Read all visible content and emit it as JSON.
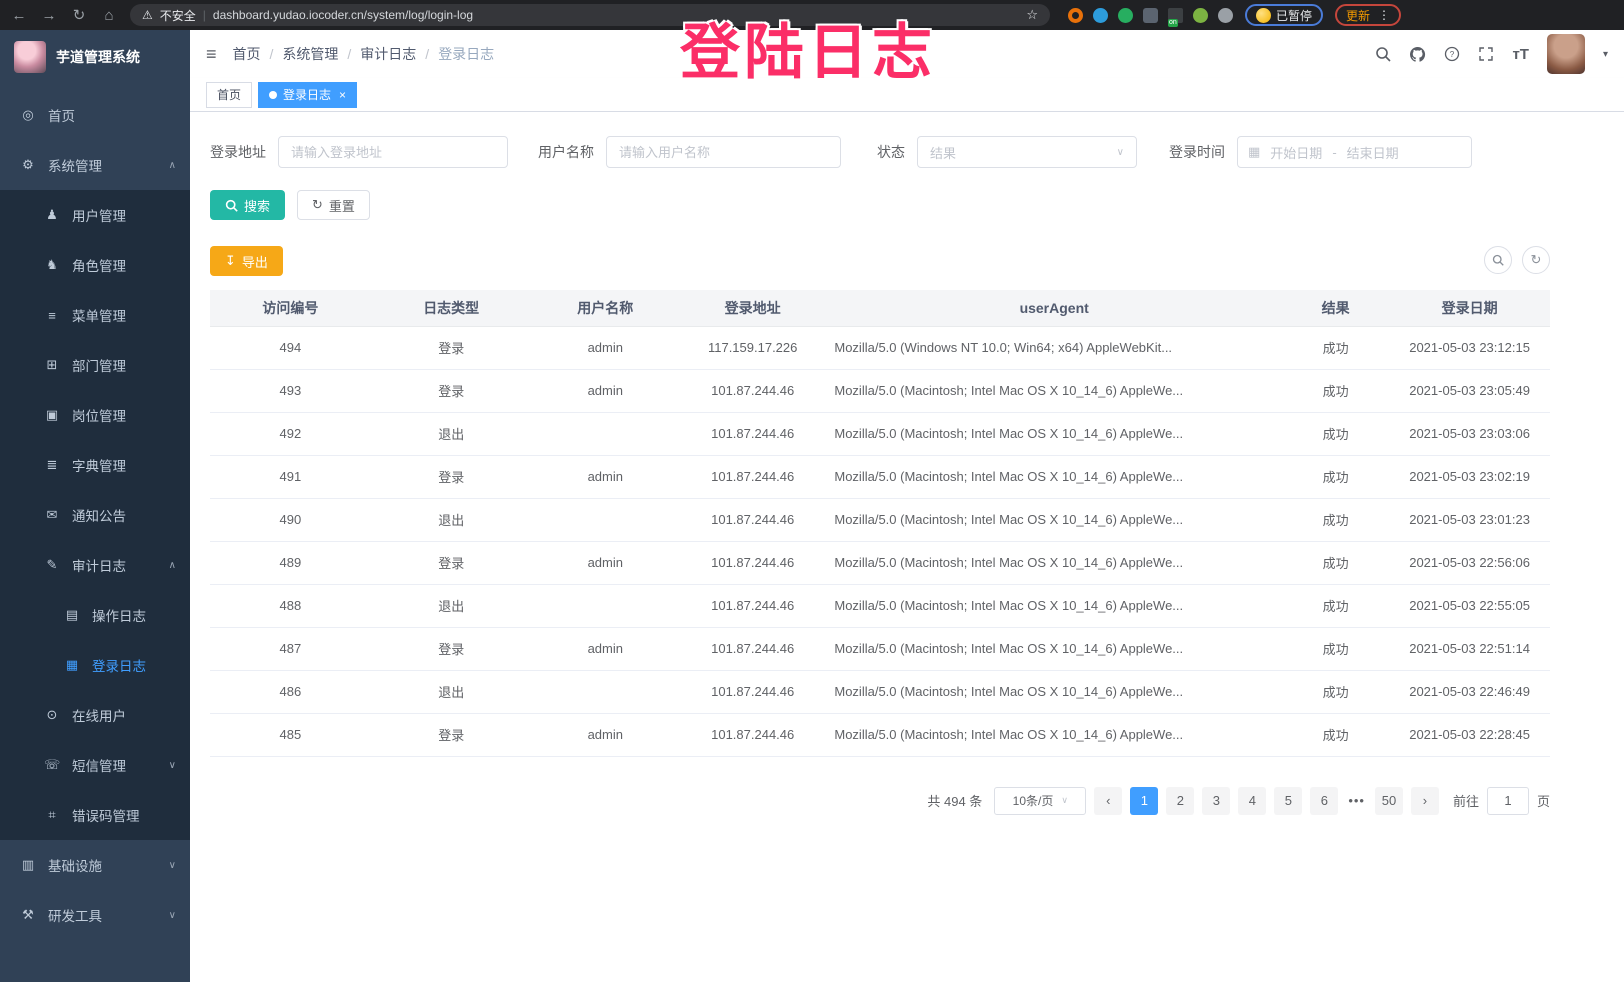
{
  "colors": {
    "accent_blue": "#409EFF",
    "sidebar_bg": "#304156",
    "sidebar_submenu_bg": "#1F2D3D",
    "sidebar_text": "#BFCBD9",
    "search_button": "#23B8A5",
    "export_button": "#F6A817",
    "overlay_pink": "#FB2E67",
    "chrome_bar": "#202124"
  },
  "browser": {
    "security_warning": "不安全",
    "url": "dashboard.yudao.iocoder.cn/system/log/login-log",
    "paused_badge": "已暂停",
    "update_button": "更新",
    "extensions": [
      {
        "name": "extension-ring-icon",
        "color": "#E8710A"
      },
      {
        "name": "extension-gem-icon",
        "color": "#2D9CDB"
      },
      {
        "name": "extension-heart-icon",
        "color": "#27AE60"
      },
      {
        "name": "extension-grid-icon",
        "color": "#5B6470"
      },
      {
        "name": "extension-list-on-icon",
        "color": "#3C4043",
        "badge": "on"
      },
      {
        "name": "extension-leaf-icon",
        "color": "#7CB342"
      },
      {
        "name": "extensions-puzzle-icon",
        "color": "#9AA0A6"
      }
    ]
  },
  "overlay": {
    "text": "登陆日志"
  },
  "sidebar": {
    "app_title": "芋道管理系统",
    "menu": [
      {
        "label": "首页",
        "icon": "dashboard-icon",
        "level": 1
      },
      {
        "label": "系统管理",
        "icon": "gear-icon",
        "level": 1,
        "arrow": "up"
      },
      {
        "label": "用户管理",
        "icon": "user-icon",
        "level": 2
      },
      {
        "label": "角色管理",
        "icon": "roles-icon",
        "level": 2
      },
      {
        "label": "菜单管理",
        "icon": "menu-list-icon",
        "level": 2
      },
      {
        "label": "部门管理",
        "icon": "org-tree-icon",
        "level": 2
      },
      {
        "label": "岗位管理",
        "icon": "post-badge-icon",
        "level": 2
      },
      {
        "label": "字典管理",
        "icon": "dictionary-icon",
        "level": 2
      },
      {
        "label": "通知公告",
        "icon": "announcement-icon",
        "level": 2
      },
      {
        "label": "审计日志",
        "icon": "audit-log-icon",
        "level": 2,
        "arrow": "up"
      },
      {
        "label": "操作日志",
        "icon": "operation-log-icon",
        "level": 3
      },
      {
        "label": "登录日志",
        "icon": "login-log-icon",
        "level": 3,
        "active": true
      },
      {
        "label": "在线用户",
        "icon": "online-users-icon",
        "level": 2
      },
      {
        "label": "短信管理",
        "icon": "sms-icon",
        "level": 2,
        "arrow": "down"
      },
      {
        "label": "错误码管理",
        "icon": "error-code-icon",
        "level": 2
      },
      {
        "label": "基础设施",
        "icon": "infrastructure-icon",
        "level": 1,
        "arrow": "down"
      },
      {
        "label": "研发工具",
        "icon": "dev-tools-icon",
        "level": 1,
        "arrow": "down"
      }
    ]
  },
  "breadcrumb": {
    "items": [
      "首页",
      "系统管理",
      "审计日志",
      "登录日志"
    ]
  },
  "tabs": [
    {
      "label": "首页",
      "active": false
    },
    {
      "label": "登录日志",
      "active": true,
      "closable": true
    }
  ],
  "filters": {
    "address": {
      "label": "登录地址",
      "placeholder": "请输入登录地址"
    },
    "username": {
      "label": "用户名称",
      "placeholder": "请输入用户名称"
    },
    "status": {
      "label": "状态",
      "placeholder": "结果"
    },
    "time": {
      "label": "登录时间",
      "start_placeholder": "开始日期",
      "separator": "-",
      "end_placeholder": "结束日期"
    },
    "search_button": "搜索",
    "reset_button": "重置"
  },
  "toolbar": {
    "export_button": "导出"
  },
  "table": {
    "columns": [
      "访问编号",
      "日志类型",
      "用户名称",
      "登录地址",
      "userAgent",
      "结果",
      "登录日期"
    ],
    "column_keys": [
      "id",
      "type",
      "username",
      "ip",
      "user-agent",
      "result",
      "date"
    ],
    "rows": [
      [
        "494",
        "登录",
        "admin",
        "117.159.17.226",
        "Mozilla/5.0 (Windows NT 10.0; Win64; x64) AppleWebKit...",
        "成功",
        "2021-05-03 23:12:15"
      ],
      [
        "493",
        "登录",
        "admin",
        "101.87.244.46",
        "Mozilla/5.0 (Macintosh; Intel Mac OS X 10_14_6) AppleWe...",
        "成功",
        "2021-05-03 23:05:49"
      ],
      [
        "492",
        "退出",
        "",
        "101.87.244.46",
        "Mozilla/5.0 (Macintosh; Intel Mac OS X 10_14_6) AppleWe...",
        "成功",
        "2021-05-03 23:03:06"
      ],
      [
        "491",
        "登录",
        "admin",
        "101.87.244.46",
        "Mozilla/5.0 (Macintosh; Intel Mac OS X 10_14_6) AppleWe...",
        "成功",
        "2021-05-03 23:02:19"
      ],
      [
        "490",
        "退出",
        "",
        "101.87.244.46",
        "Mozilla/5.0 (Macintosh; Intel Mac OS X 10_14_6) AppleWe...",
        "成功",
        "2021-05-03 23:01:23"
      ],
      [
        "489",
        "登录",
        "admin",
        "101.87.244.46",
        "Mozilla/5.0 (Macintosh; Intel Mac OS X 10_14_6) AppleWe...",
        "成功",
        "2021-05-03 22:56:06"
      ],
      [
        "488",
        "退出",
        "",
        "101.87.244.46",
        "Mozilla/5.0 (Macintosh; Intel Mac OS X 10_14_6) AppleWe...",
        "成功",
        "2021-05-03 22:55:05"
      ],
      [
        "487",
        "登录",
        "admin",
        "101.87.244.46",
        "Mozilla/5.0 (Macintosh; Intel Mac OS X 10_14_6) AppleWe...",
        "成功",
        "2021-05-03 22:51:14"
      ],
      [
        "486",
        "退出",
        "",
        "101.87.244.46",
        "Mozilla/5.0 (Macintosh; Intel Mac OS X 10_14_6) AppleWe...",
        "成功",
        "2021-05-03 22:46:49"
      ],
      [
        "485",
        "登录",
        "admin",
        "101.87.244.46",
        "Mozilla/5.0 (Macintosh; Intel Mac OS X 10_14_6) AppleWe...",
        "成功",
        "2021-05-03 22:28:45"
      ]
    ]
  },
  "pagination": {
    "total_text": "共 494 条",
    "page_size": "10条/页",
    "pages": [
      "1",
      "2",
      "3",
      "4",
      "5",
      "6",
      "•••",
      "50"
    ],
    "active_page": "1",
    "goto_prefix": "前往",
    "goto_value": "1",
    "goto_suffix": "页"
  }
}
